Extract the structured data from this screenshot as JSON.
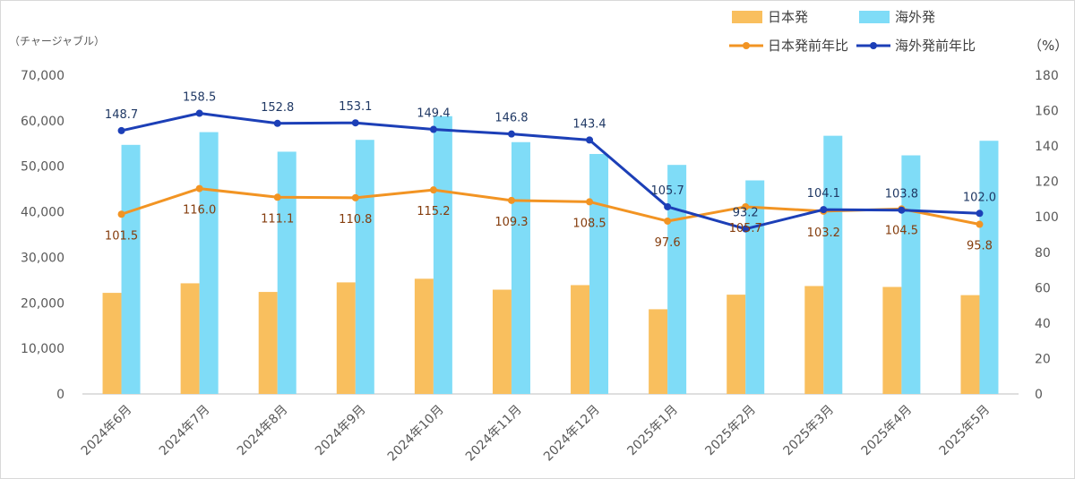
{
  "chart_data": {
    "type": "bar+line",
    "left_axis_unit": "（チャージャブル）",
    "right_axis_unit": "（%）",
    "categories": [
      "2024年6月",
      "2024年7月",
      "2024年8月",
      "2024年9月",
      "2024年10月",
      "2024年11月",
      "2024年12月",
      "2025年1月",
      "2025年2月",
      "2025年3月",
      "2025年4月",
      "2025年5月"
    ],
    "left_ylim": [
      0,
      70000
    ],
    "left_ticks": [
      "0",
      "10,000",
      "20,000",
      "30,000",
      "40,000",
      "50,000",
      "60,000",
      "70,000"
    ],
    "right_ylim": [
      0,
      180
    ],
    "right_ticks": [
      "0",
      "20",
      "40",
      "60",
      "80",
      "100",
      "120",
      "140",
      "160",
      "180"
    ],
    "bar_series": [
      {
        "name": "日本発",
        "color": "#f9bf5e",
        "values": [
          22200,
          24300,
          22400,
          24500,
          25300,
          22900,
          23900,
          18600,
          21800,
          23700,
          23500,
          21700
        ]
      },
      {
        "name": "海外発",
        "color": "#7fdcf7",
        "values": [
          54700,
          57500,
          53200,
          55800,
          61000,
          55300,
          52700,
          50300,
          46900,
          56700,
          52400,
          55600
        ]
      }
    ],
    "line_series": [
      {
        "name": "日本発前年比",
        "color": "#f29423",
        "values": [
          101.5,
          116.0,
          111.1,
          110.8,
          115.2,
          109.3,
          108.5,
          97.6,
          105.7,
          103.2,
          104.5,
          95.8
        ],
        "labels": [
          "101.5",
          "116.0",
          "111.1",
          "110.8",
          "115.2",
          "109.3",
          "108.5",
          "97.6",
          "105.7",
          "103.2",
          "104.5",
          "95.8"
        ]
      },
      {
        "name": "海外発前年比",
        "color": "#1c3fb7",
        "values": [
          148.7,
          158.5,
          152.8,
          153.1,
          149.4,
          146.8,
          143.4,
          105.7,
          93.2,
          104.1,
          103.8,
          102.0
        ],
        "labels": [
          "148.7",
          "158.5",
          "152.8",
          "153.1",
          "149.4",
          "146.8",
          "143.4",
          "105.7",
          "93.2",
          "104.1",
          "103.8",
          "102.0"
        ]
      }
    ],
    "grid": false,
    "legend_position": "top-right"
  }
}
